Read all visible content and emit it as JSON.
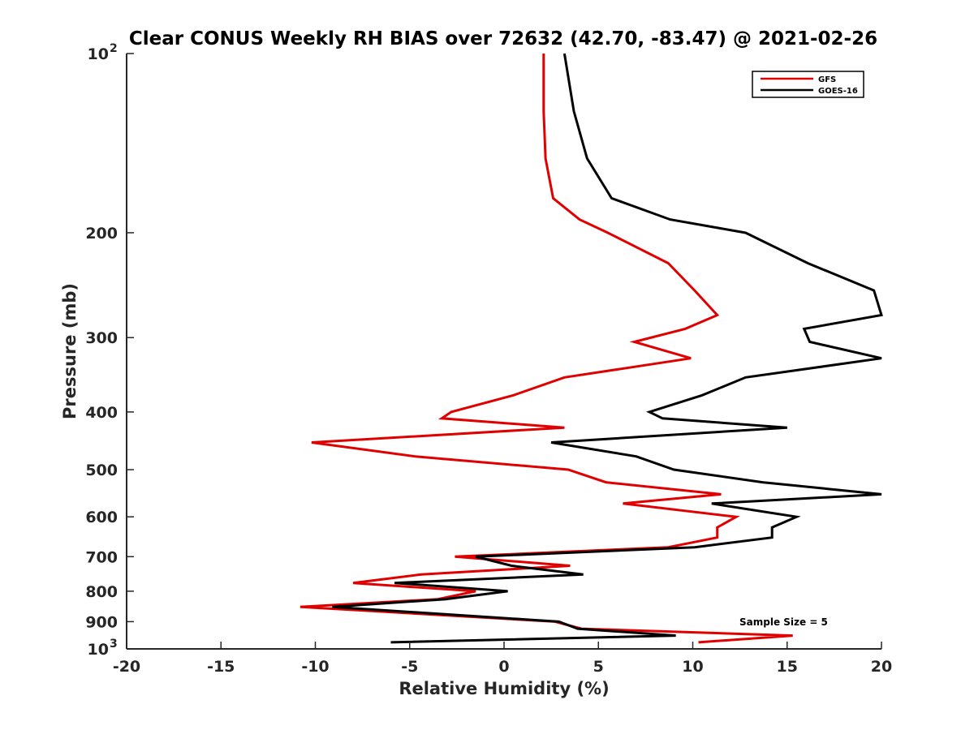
{
  "chart_data": {
    "type": "line",
    "title": "Clear CONUS Weekly RH BIAS over 72632 (42.70, -83.47) @ 2021-02-26",
    "xlabel": "Relative Humidity (%)",
    "ylabel": "Pressure (mb)",
    "xlim": [
      -20,
      20
    ],
    "ylim": [
      100,
      1000
    ],
    "yscale": "log",
    "y_reversed": true,
    "grid": false,
    "legend_position": "top-right",
    "x_ticks": [
      {
        "value": -20,
        "label": "-20"
      },
      {
        "value": -15,
        "label": "-15"
      },
      {
        "value": -10,
        "label": "-10"
      },
      {
        "value": -5,
        "label": "-5"
      },
      {
        "value": 0,
        "label": "0"
      },
      {
        "value": 5,
        "label": "5"
      },
      {
        "value": 10,
        "label": "10"
      },
      {
        "value": 15,
        "label": "15"
      },
      {
        "value": 20,
        "label": "20"
      }
    ],
    "y_ticks": [
      {
        "value": 100,
        "label": "10",
        "sup": "2"
      },
      {
        "value": 200,
        "label": "200",
        "sup": ""
      },
      {
        "value": 300,
        "label": "300",
        "sup": ""
      },
      {
        "value": 400,
        "label": "400",
        "sup": ""
      },
      {
        "value": 500,
        "label": "500",
        "sup": ""
      },
      {
        "value": 600,
        "label": "600",
        "sup": ""
      },
      {
        "value": 700,
        "label": "700",
        "sup": ""
      },
      {
        "value": 800,
        "label": "800",
        "sup": ""
      },
      {
        "value": 900,
        "label": "900",
        "sup": ""
      },
      {
        "value": 1000,
        "label": "10",
        "sup": "3"
      }
    ],
    "series": [
      {
        "name": "GFS",
        "color": "#e00000",
        "points": [
          {
            "x": 2.1,
            "y": 100
          },
          {
            "x": 2.1,
            "y": 125
          },
          {
            "x": 2.2,
            "y": 150
          },
          {
            "x": 2.6,
            "y": 175
          },
          {
            "x": 4.0,
            "y": 190
          },
          {
            "x": 5.5,
            "y": 200
          },
          {
            "x": 8.7,
            "y": 225
          },
          {
            "x": 10.1,
            "y": 250
          },
          {
            "x": 11.3,
            "y": 275
          },
          {
            "x": 9.6,
            "y": 290
          },
          {
            "x": 6.9,
            "y": 305
          },
          {
            "x": 9.9,
            "y": 325
          },
          {
            "x": 3.2,
            "y": 350
          },
          {
            "x": 0.5,
            "y": 375
          },
          {
            "x": -2.8,
            "y": 400
          },
          {
            "x": -3.3,
            "y": 410
          },
          {
            "x": 3.2,
            "y": 425
          },
          {
            "x": -10.2,
            "y": 450
          },
          {
            "x": -4.7,
            "y": 475
          },
          {
            "x": 3.4,
            "y": 500
          },
          {
            "x": 5.4,
            "y": 525
          },
          {
            "x": 11.5,
            "y": 550
          },
          {
            "x": 6.3,
            "y": 570
          },
          {
            "x": 12.3,
            "y": 600
          },
          {
            "x": 11.3,
            "y": 625
          },
          {
            "x": 11.3,
            "y": 650
          },
          {
            "x": 8.7,
            "y": 675
          },
          {
            "x": -2.6,
            "y": 700
          },
          {
            "x": 3.5,
            "y": 725
          },
          {
            "x": -4.4,
            "y": 750
          },
          {
            "x": -8.0,
            "y": 775
          },
          {
            "x": -1.5,
            "y": 800
          },
          {
            "x": -3.5,
            "y": 825
          },
          {
            "x": -10.8,
            "y": 850
          },
          {
            "x": 2.7,
            "y": 900
          },
          {
            "x": 4.1,
            "y": 925
          },
          {
            "x": 15.3,
            "y": 950
          },
          {
            "x": 10.3,
            "y": 975
          }
        ]
      },
      {
        "name": "GOES-16",
        "color": "#000000",
        "points": [
          {
            "x": 3.2,
            "y": 100
          },
          {
            "x": 3.7,
            "y": 125
          },
          {
            "x": 4.4,
            "y": 150
          },
          {
            "x": 5.7,
            "y": 175
          },
          {
            "x": 8.8,
            "y": 190
          },
          {
            "x": 12.8,
            "y": 200
          },
          {
            "x": 16.1,
            "y": 225
          },
          {
            "x": 19.6,
            "y": 250
          },
          {
            "x": 20.0,
            "y": 275
          },
          {
            "x": 15.9,
            "y": 290
          },
          {
            "x": 16.2,
            "y": 305
          },
          {
            "x": 20.0,
            "y": 325
          },
          {
            "x": 12.8,
            "y": 350
          },
          {
            "x": 10.5,
            "y": 375
          },
          {
            "x": 7.7,
            "y": 400
          },
          {
            "x": 8.4,
            "y": 410
          },
          {
            "x": 15.0,
            "y": 425
          },
          {
            "x": 2.5,
            "y": 450
          },
          {
            "x": 7.0,
            "y": 475
          },
          {
            "x": 9.0,
            "y": 500
          },
          {
            "x": 13.7,
            "y": 525
          },
          {
            "x": 20.0,
            "y": 550
          },
          {
            "x": 11.0,
            "y": 570
          },
          {
            "x": 15.5,
            "y": 600
          },
          {
            "x": 14.2,
            "y": 625
          },
          {
            "x": 14.2,
            "y": 650
          },
          {
            "x": 10.1,
            "y": 675
          },
          {
            "x": -1.5,
            "y": 700
          },
          {
            "x": 0.4,
            "y": 725
          },
          {
            "x": 4.2,
            "y": 750
          },
          {
            "x": -5.8,
            "y": 775
          },
          {
            "x": 0.2,
            "y": 800
          },
          {
            "x": -3.1,
            "y": 825
          },
          {
            "x": -9.1,
            "y": 850
          },
          {
            "x": 2.9,
            "y": 900
          },
          {
            "x": 3.9,
            "y": 925
          },
          {
            "x": 9.1,
            "y": 950
          },
          {
            "x": -6.0,
            "y": 975
          }
        ]
      }
    ],
    "annotations": [
      {
        "text": "Sample Size = 5"
      }
    ]
  }
}
